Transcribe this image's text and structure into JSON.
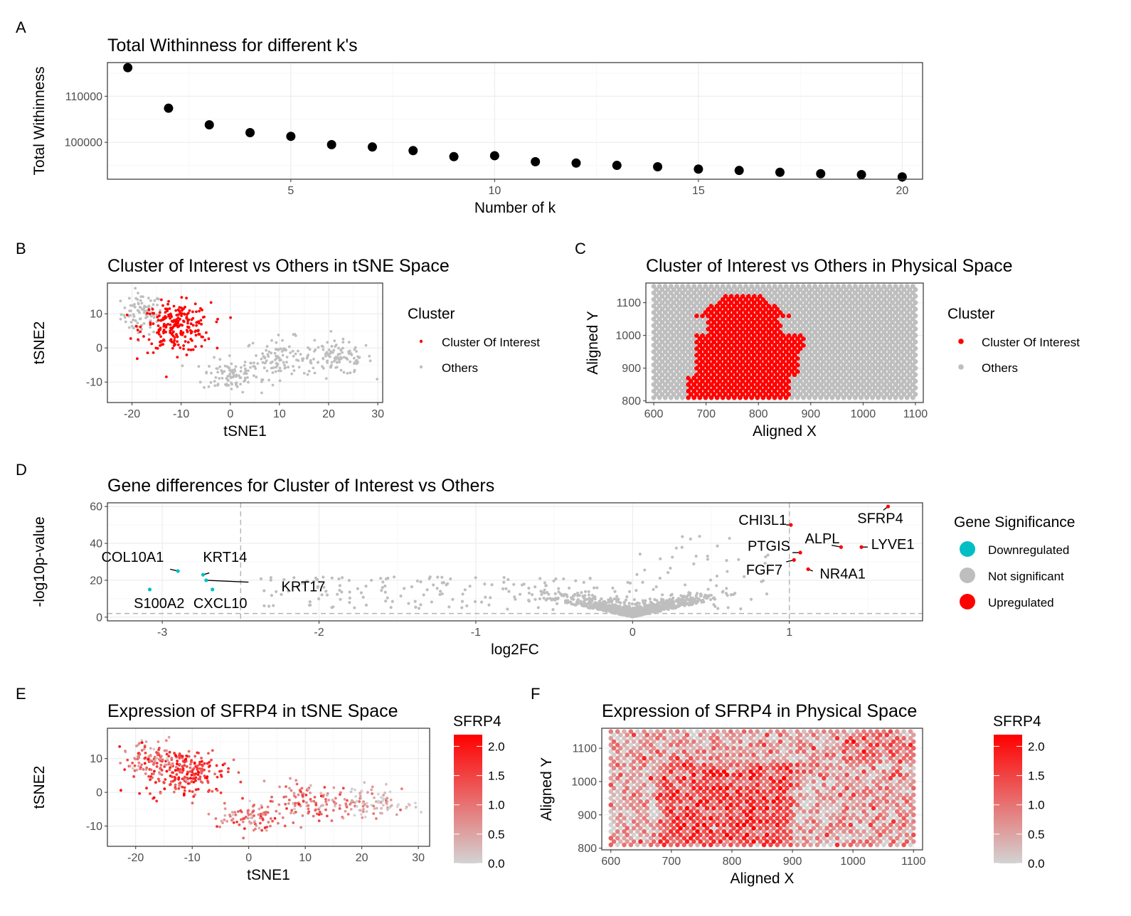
{
  "colors": {
    "interest": "#ff0000",
    "others": "#bebebe",
    "downregulated": "#00bfc4",
    "not_significant": "#bebebe",
    "upregulated": "#ff0000",
    "gradient_low": "#d3d3d3",
    "gradient_high": "#ff0000",
    "elbow_points": "#000000"
  },
  "chart_data": [
    {
      "id": "A",
      "panel_letter": "A",
      "type": "scatter",
      "title": "Total Withinness for different k's",
      "xlabel": "Number of k",
      "ylabel": "Total Withinness",
      "xlim": [
        0.5,
        20.5
      ],
      "ylim": [
        92000,
        117300
      ],
      "xticks": [
        5,
        10,
        15,
        20
      ],
      "yticks": [
        100000,
        110000
      ],
      "x": [
        1,
        2,
        3,
        4,
        5,
        6,
        7,
        8,
        9,
        10,
        11,
        12,
        13,
        14,
        15,
        16,
        17,
        18,
        19,
        20
      ],
      "y": [
        116200,
        107400,
        103800,
        102100,
        101300,
        99500,
        99000,
        98200,
        96900,
        97100,
        95800,
        95500,
        95000,
        94700,
        94200,
        93900,
        93500,
        93200,
        93000,
        92500
      ]
    },
    {
      "id": "B",
      "panel_letter": "B",
      "type": "scatter",
      "title": "Cluster of Interest vs Others in tSNE Space",
      "xlabel": "tSNE1",
      "ylabel": "tSNE2",
      "xlim": [
        -25,
        31
      ],
      "ylim": [
        -16,
        19
      ],
      "xticks": [
        -20,
        -10,
        0,
        10,
        20,
        30
      ],
      "yticks": [
        -10,
        0,
        10
      ],
      "legend": {
        "title": "Cluster",
        "position": "right",
        "items": [
          "Cluster Of Interest",
          "Others"
        ]
      },
      "regions": [
        {
          "group": "Cluster Of Interest",
          "center": [
            -11,
            6
          ],
          "spread": [
            5,
            6
          ],
          "count": 230
        },
        {
          "group": "Others",
          "center": [
            -18,
            10
          ],
          "spread": [
            3,
            5
          ],
          "count": 90
        },
        {
          "group": "Others",
          "center": [
            0,
            -8
          ],
          "spread": [
            4,
            4
          ],
          "count": 90
        },
        {
          "group": "Others",
          "center": [
            10,
            -3
          ],
          "spread": [
            5,
            5
          ],
          "count": 110
        },
        {
          "group": "Others",
          "center": [
            22,
            -3
          ],
          "spread": [
            5,
            4
          ],
          "count": 100
        }
      ]
    },
    {
      "id": "C",
      "panel_letter": "C",
      "type": "scatter",
      "title": "Cluster of Interest vs Others in Physical Space",
      "xlabel": "Aligned X",
      "ylabel": "Aligned Y",
      "xlim": [
        585,
        1115
      ],
      "ylim": [
        795,
        1160
      ],
      "xticks": [
        600,
        700,
        800,
        900,
        1000,
        1100
      ],
      "yticks": [
        800,
        900,
        1000,
        1100
      ],
      "legend": {
        "title": "Cluster",
        "position": "right",
        "items": [
          "Cluster Of Interest",
          "Others"
        ]
      },
      "grid_x_range": [
        600,
        1100
      ],
      "grid_y_range": [
        810,
        1150
      ],
      "interest_region_center": [
        775,
        930
      ]
    },
    {
      "id": "D",
      "panel_letter": "D",
      "type": "scatter",
      "title": "Gene differences for Cluster of Interest vs Others",
      "xlabel": "log2FC",
      "ylabel": "-log10p-value",
      "xlim": [
        -3.35,
        1.85
      ],
      "ylim": [
        -2,
        62
      ],
      "xticks": [
        -3,
        -2,
        -1,
        0,
        1
      ],
      "yticks": [
        0,
        20,
        40,
        60
      ],
      "thresholds": {
        "log2fc": [
          -2.5,
          1
        ],
        "pvalue_line": 2
      },
      "legend": {
        "title": "Gene Significance",
        "position": "right",
        "items": [
          "Downregulated",
          "Not significant",
          "Upregulated"
        ]
      },
      "labeled_genes": [
        {
          "gene": "COL10A1",
          "x": -2.9,
          "y": 25,
          "sig": "Downregulated"
        },
        {
          "gene": "KRT14",
          "x": -2.74,
          "y": 23,
          "sig": "Downregulated"
        },
        {
          "gene": "KRT17",
          "x": -2.72,
          "y": 20,
          "sig": "Downregulated"
        },
        {
          "gene": "S100A2",
          "x": -3.08,
          "y": 15,
          "sig": "Downregulated"
        },
        {
          "gene": "CXCL10",
          "x": -2.68,
          "y": 15,
          "sig": "Downregulated"
        },
        {
          "gene": "SFRP4",
          "x": 1.63,
          "y": 60,
          "sig": "Upregulated"
        },
        {
          "gene": "CHI3L1",
          "x": 1.01,
          "y": 50,
          "sig": "Upregulated"
        },
        {
          "gene": "ALPL",
          "x": 1.33,
          "y": 38,
          "sig": "Upregulated"
        },
        {
          "gene": "LYVE1",
          "x": 1.46,
          "y": 38,
          "sig": "Upregulated"
        },
        {
          "gene": "PTGIS",
          "x": 1.07,
          "y": 35,
          "sig": "Upregulated"
        },
        {
          "gene": "FGF7",
          "x": 1.03,
          "y": 31,
          "sig": "Upregulated"
        },
        {
          "gene": "NR4A1",
          "x": 1.12,
          "y": 26,
          "sig": "Upregulated"
        }
      ]
    },
    {
      "id": "E",
      "panel_letter": "E",
      "type": "scatter",
      "title": "Expression of SFRP4 in tSNE Space",
      "xlabel": "tSNE1",
      "ylabel": "tSNE2",
      "xlim": [
        -25,
        32
      ],
      "ylim": [
        -16,
        19
      ],
      "xticks": [
        -20,
        -10,
        0,
        10,
        20,
        30
      ],
      "yticks": [
        -10,
        0,
        10
      ],
      "colorbar": {
        "title": "SFRP4",
        "range": [
          0,
          2.2
        ],
        "ticks": [
          "0.0",
          "0.5",
          "1.0",
          "1.5",
          "2.0"
        ]
      }
    },
    {
      "id": "F",
      "panel_letter": "F",
      "type": "scatter",
      "title": "Expression of SFRP4 in Physical Space",
      "xlabel": "Aligned X",
      "ylabel": "Aligned Y",
      "xlim": [
        585,
        1115
      ],
      "ylim": [
        795,
        1160
      ],
      "xticks": [
        600,
        700,
        800,
        900,
        1000,
        1100
      ],
      "yticks": [
        800,
        900,
        1000,
        1100
      ],
      "colorbar": {
        "title": "SFRP4",
        "range": [
          0,
          2.2
        ],
        "ticks": [
          "0.0",
          "0.5",
          "1.0",
          "1.5",
          "2.0"
        ]
      }
    }
  ]
}
